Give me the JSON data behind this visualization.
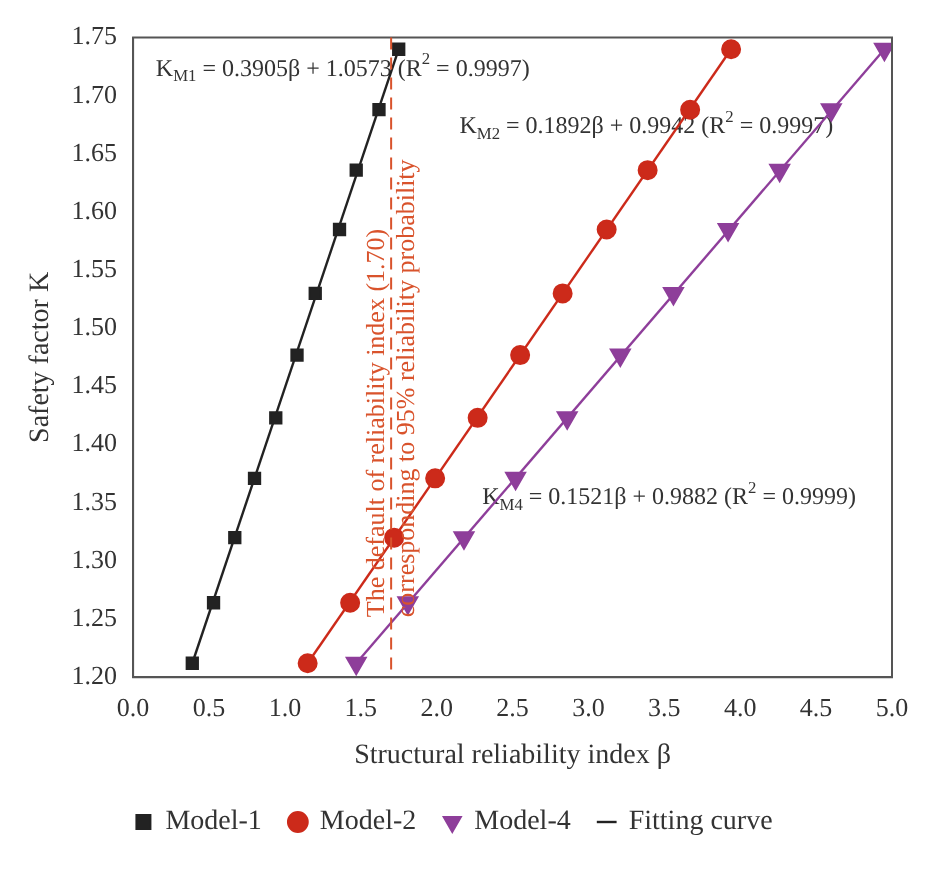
{
  "chart_data": {
    "type": "scatter",
    "xlabel": "Structural reliability index β",
    "ylabel": "Safety factor K",
    "xlim": [
      0,
      5
    ],
    "xticks": [
      {
        "value": 0,
        "label": "0.0"
      },
      {
        "value": 0.5,
        "label": "0.5"
      },
      {
        "value": 1,
        "label": "1.0"
      },
      {
        "value": 1.5,
        "label": "1.5"
      },
      {
        "value": 2,
        "label": "2.0"
      },
      {
        "value": 2.5,
        "label": "2.5"
      },
      {
        "value": 3,
        "label": "3.0"
      },
      {
        "value": 3.5,
        "label": "3.5"
      },
      {
        "value": 4,
        "label": "4.0"
      },
      {
        "value": 4.5,
        "label": "4.5"
      },
      {
        "value": 5,
        "label": "5.0"
      }
    ],
    "ylim": [
      1.2,
      1.75
    ],
    "yticks": [
      {
        "value": 1.2,
        "label": "1.20"
      },
      {
        "value": 1.25,
        "label": "1.25"
      },
      {
        "value": 1.3,
        "label": "1.30"
      },
      {
        "value": 1.35,
        "label": "1.35"
      },
      {
        "value": 1.4,
        "label": "1.40"
      },
      {
        "value": 1.45,
        "label": "1.45"
      },
      {
        "value": 1.5,
        "label": "1.50"
      },
      {
        "value": 1.55,
        "label": "1.55"
      },
      {
        "value": 1.6,
        "label": "1.60"
      },
      {
        "value": 1.65,
        "label": "1.65"
      },
      {
        "value": 1.7,
        "label": "1.70"
      },
      {
        "value": 1.75,
        "label": "1.75"
      }
    ],
    "grid": false,
    "legend": "bottom",
    "series": [
      {
        "name": "Model-1",
        "type": "scatter",
        "marker": "square",
        "color": "#222222",
        "x": [
          0.39,
          0.53,
          0.67,
          0.8,
          0.94,
          1.08,
          1.2,
          1.36,
          1.47,
          1.62,
          1.75
        ],
        "values": [
          1.212,
          1.264,
          1.32,
          1.371,
          1.423,
          1.477,
          1.53,
          1.585,
          1.636,
          1.688,
          1.74
        ]
      },
      {
        "name": "Model-2",
        "type": "scatter",
        "marker": "circle",
        "color": "#cc2a1a",
        "x": [
          1.15,
          1.43,
          1.72,
          1.99,
          2.27,
          2.55,
          2.83,
          3.12,
          3.39,
          3.67,
          3.94
        ],
        "values": [
          1.212,
          1.264,
          1.32,
          1.371,
          1.423,
          1.477,
          1.53,
          1.585,
          1.636,
          1.688,
          1.74
        ]
      },
      {
        "name": "Model-4",
        "type": "scatter",
        "marker": "triangle",
        "color": "#8e3e9a",
        "x": [
          1.47,
          1.81,
          2.18,
          2.52,
          2.86,
          3.21,
          3.56,
          3.92,
          4.26,
          4.6,
          4.95
        ],
        "values": [
          1.212,
          1.264,
          1.32,
          1.371,
          1.423,
          1.477,
          1.53,
          1.585,
          1.636,
          1.688,
          1.74
        ]
      },
      {
        "name": "Fitting curve",
        "type": "line",
        "marker": "none",
        "color": "#222222",
        "x": [
          0.39,
          1.75
        ],
        "values": [
          1.212,
          1.74
        ]
      },
      {
        "type": "line",
        "marker": "none",
        "color": "#cc2a1a",
        "x": [
          1.15,
          3.94
        ],
        "values": [
          1.212,
          1.74
        ]
      },
      {
        "type": "line",
        "marker": "none",
        "color": "#8e3e9a",
        "x": [
          1.47,
          4.95
        ],
        "values": [
          1.212,
          1.74
        ]
      }
    ],
    "ref_lines": [
      {
        "axis": "x",
        "value": 1.7,
        "label": "The default of reliability index (1.70) corresponding to 95% reliability probability",
        "color": "#d9532c",
        "line_style": "dashed"
      }
    ],
    "annotations": [
      "K$_{M1}$ = 0.3905β + 1.0573 (R$^{2}$ = 0.9997)",
      "K$_{M2}$ = 0.1892β + 0.9942 (R$^{2}$ = 0.9997)",
      "K$_{M4}$ = 0.1521β + 0.9882 (R$^{2}$ = 0.9999)"
    ]
  }
}
